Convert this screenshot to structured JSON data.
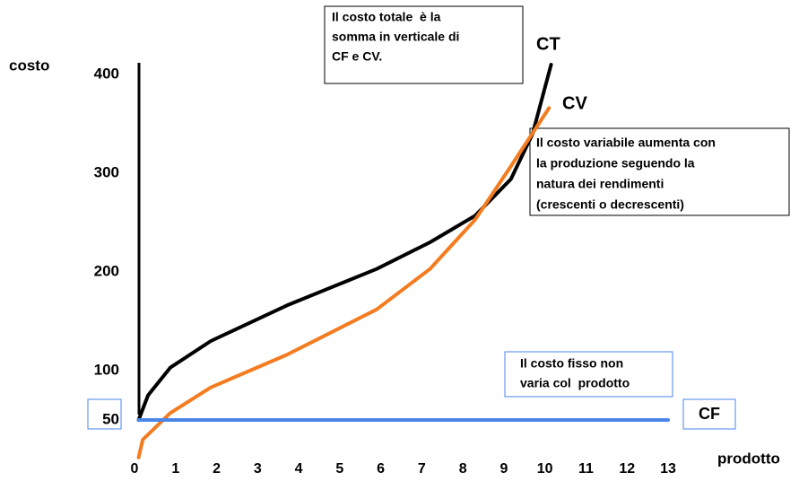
{
  "chart_data": {
    "type": "line",
    "x_label": "prodotto",
    "y_label": "costo",
    "xlim": [
      0,
      13
    ],
    "ylim": [
      0,
      420
    ],
    "xticks": [
      0,
      1,
      2,
      3,
      4,
      5,
      6,
      7,
      8,
      9,
      10,
      11,
      12,
      13
    ],
    "yticks": [
      50,
      100,
      200,
      300,
      400
    ],
    "series": [
      {
        "name": "CT",
        "color": "#000000",
        "x": [
          0.1,
          0.33,
          0.87,
          1.86,
          3.71,
          5.9,
          7.2,
          8.3,
          9.17,
          9.7,
          10.15
        ],
        "values": [
          50,
          75,
          103,
          130,
          166,
          203,
          230,
          257,
          294,
          340,
          410
        ]
      },
      {
        "name": "CV",
        "color": "#f47c20",
        "x": [
          0.1,
          0.2,
          0.87,
          1.86,
          3.71,
          5.9,
          7.2,
          8.3,
          9.17,
          10.1
        ],
        "values": [
          12,
          30,
          57,
          83,
          116,
          162,
          203,
          253,
          307,
          366
        ]
      },
      {
        "name": "CF",
        "color": "#4a86e8",
        "x": [
          0.1,
          13
        ],
        "values": [
          50,
          50
        ]
      }
    ],
    "annotations": [
      [
        "Il costo totale  è la",
        "somma in verticale di",
        "CF e CV."
      ],
      [
        "Il costo variabile aumenta con",
        "la produzione seguendo la",
        "natura dei rendimenti",
        "(crescenti o decrescenti)"
      ],
      [
        "Il costo fisso non",
        "varia col  prodotto"
      ]
    ]
  }
}
